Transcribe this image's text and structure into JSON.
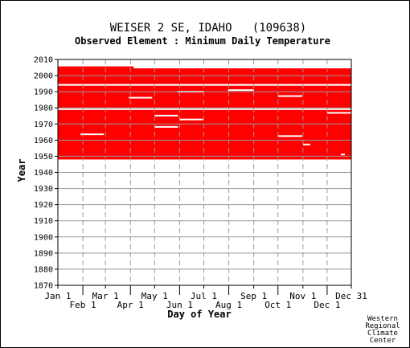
{
  "colors": {
    "data": "#ff0000",
    "background": "#ffffff",
    "grid": "#999999",
    "axis": "#000000"
  },
  "chart_data": {
    "type": "heatmap",
    "title": "WEISER 2 SE, IDAHO   (109638)",
    "subtitle": "Observed Element : Minimum Daily Temperature",
    "xlabel": "Day of Year",
    "ylabel": "Year",
    "credit": [
      "Western",
      "Regional",
      "Climate",
      "Center"
    ],
    "xlim": [
      1,
      365
    ],
    "ylim": [
      1870,
      2010
    ],
    "y_ticks": [
      1870,
      1880,
      1890,
      1900,
      1910,
      1920,
      1930,
      1940,
      1950,
      1960,
      1970,
      1980,
      1990,
      2000,
      2010
    ],
    "x_ticks_row1": [
      {
        "label": "Jan 1",
        "day": 1
      },
      {
        "label": "Mar 1",
        "day": 60
      },
      {
        "label": "May 1",
        "day": 121
      },
      {
        "label": "Jul 1",
        "day": 182
      },
      {
        "label": "Sep 1",
        "day": 244
      },
      {
        "label": "Nov 1",
        "day": 305
      },
      {
        "label": "Dec 31",
        "day": 365
      }
    ],
    "x_ticks_row2": [
      {
        "label": "Feb 1",
        "day": 32
      },
      {
        "label": "Apr 1",
        "day": 91
      },
      {
        "label": "Jun 1",
        "day": 152
      },
      {
        "label": "Aug 1",
        "day": 213
      },
      {
        "label": "Oct 1",
        "day": 274
      },
      {
        "label": "Dec 1",
        "day": 335
      }
    ],
    "grid_vertical_days": [
      32,
      60,
      91,
      121,
      152,
      182,
      213,
      244,
      274,
      305,
      335
    ],
    "grid_horizontal_years": [
      1880,
      1890,
      1900,
      1910,
      1920,
      1930,
      1940,
      1950,
      1960,
      1970,
      1980,
      1990,
      2000
    ],
    "observed_periods": [
      {
        "year_start": 1948,
        "year_end": 1978.7,
        "day_start": 1,
        "day_end": 365
      },
      {
        "year_start": 1979.7,
        "year_end": 1993.7,
        "day_start": 1,
        "day_end": 365
      },
      {
        "year_start": 1994.8,
        "year_end": 2004.5,
        "day_start": 1,
        "day_end": 365
      },
      {
        "year_start": 2004.5,
        "year_end": 2005.7,
        "day_start": 1,
        "day_end": 95
      }
    ],
    "missing_gaps": [
      {
        "year": 1991,
        "day_start": 212,
        "day_end": 244
      },
      {
        "year": 1990,
        "day_start": 149,
        "day_end": 182
      },
      {
        "year": 1987.3,
        "day_start": 274,
        "day_end": 304
      },
      {
        "year": 1986.3,
        "day_start": 89,
        "day_end": 118
      },
      {
        "year": 1975.2,
        "day_start": 121,
        "day_end": 150
      },
      {
        "year": 1972.8,
        "day_start": 152,
        "day_end": 181
      },
      {
        "year": 1968.2,
        "day_start": 121,
        "day_end": 150
      },
      {
        "year": 1963.6,
        "day_start": 29,
        "day_end": 58
      },
      {
        "year": 1962.5,
        "day_start": 274,
        "day_end": 304
      },
      {
        "year": 1957.3,
        "day_start": 305,
        "day_end": 314
      },
      {
        "year": 1976.9,
        "day_start": 335,
        "day_end": 365
      },
      {
        "year": 1951.1,
        "day_start": 352,
        "day_end": 357
      }
    ],
    "grid": true
  }
}
